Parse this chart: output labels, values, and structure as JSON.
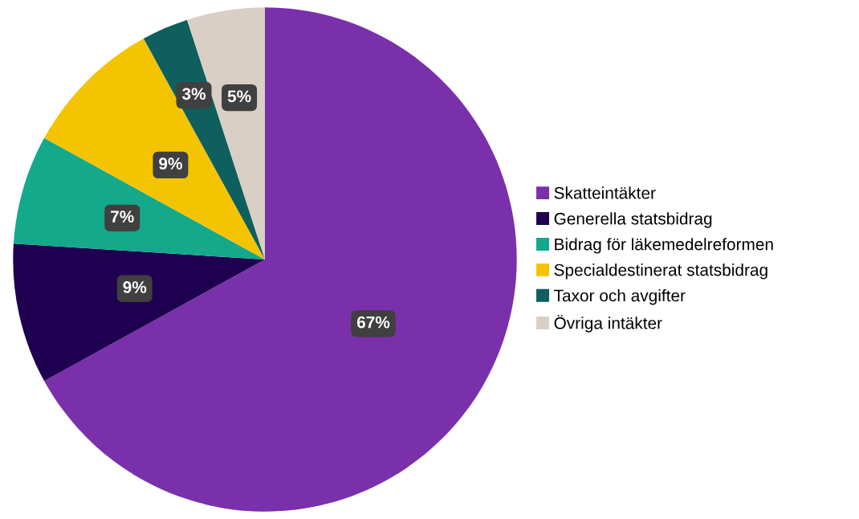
{
  "chart_data": {
    "type": "pie",
    "categories": [
      "Skatteintäkter",
      "Generella statsbidrag",
      "Bidrag för läkemedelreformen",
      "Specialdestinerat statsbidrag",
      "Taxor och avgifter",
      "Övriga intäkter"
    ],
    "values": [
      67,
      9,
      7,
      9,
      3,
      5
    ],
    "colors": [
      "#7a30ab",
      "#1f0050",
      "#13a98a",
      "#f5c400",
      "#0f5f5f",
      "#d9cfc5"
    ],
    "value_labels": [
      "67%",
      "9%",
      "7%",
      "9%",
      "3%",
      "5%"
    ],
    "legend": "right"
  }
}
